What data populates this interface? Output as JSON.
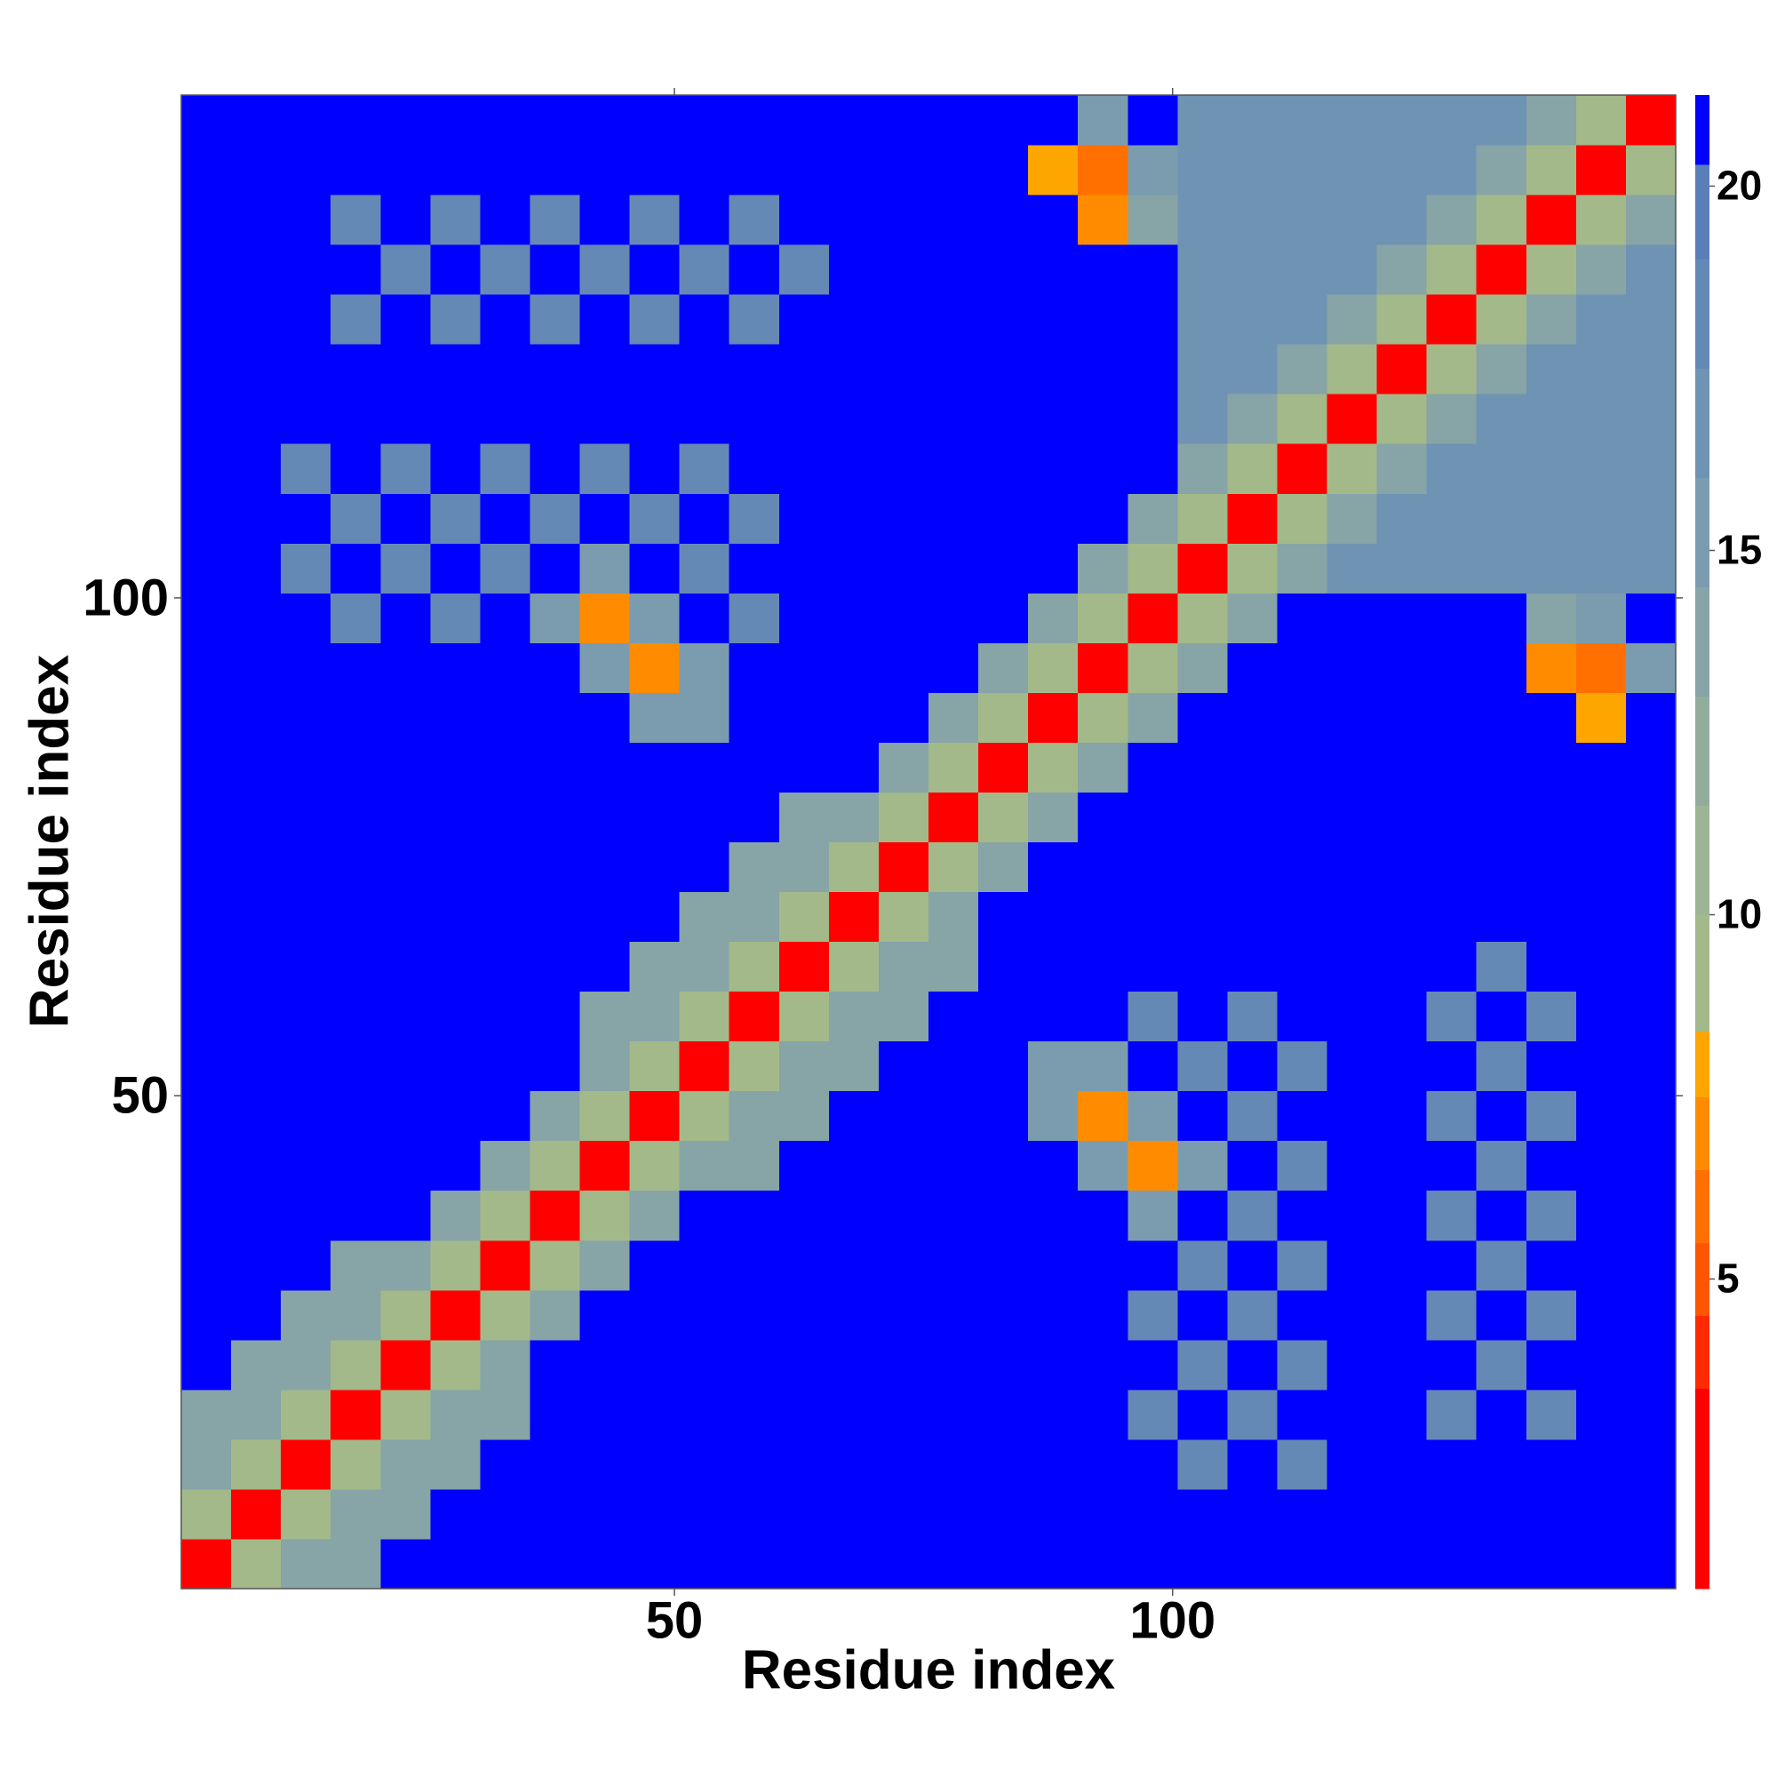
{
  "chart_data": {
    "type": "heatmap",
    "xlabel": "Residue index",
    "ylabel": "Residue index",
    "xlim": [
      0.5,
      150.5
    ],
    "ylim": [
      0.5,
      150.5
    ],
    "xticks": [
      50,
      100
    ],
    "yticks": [
      50,
      100
    ],
    "zlim": [
      0.75,
      21.25
    ],
    "cbar_ticks": [
      5,
      10,
      15,
      20
    ],
    "colorscale": [
      [
        0.75,
        "#ff0000"
      ],
      [
        3.5,
        "#ff2a00"
      ],
      [
        4.5,
        "#ff5500"
      ],
      [
        5.5,
        "#ff7000"
      ],
      [
        6.5,
        "#ff8c00"
      ],
      [
        7.5,
        "#ffa500"
      ],
      [
        8.4,
        "#a3b98a"
      ],
      [
        10,
        "#9db594"
      ],
      [
        11.5,
        "#93ad9c"
      ],
      [
        13,
        "#87a4a6"
      ],
      [
        14.5,
        "#7b9cae"
      ],
      [
        16,
        "#6f93b3"
      ],
      [
        17.5,
        "#6589b5"
      ],
      [
        19,
        "#5a7fb8"
      ],
      [
        20.3,
        "#0000ff"
      ]
    ],
    "z": [
      [
        2.5,
        8.5,
        14,
        14,
        21,
        21,
        21,
        21,
        21,
        21,
        21,
        21,
        21,
        21,
        21,
        21,
        21,
        21,
        21,
        21,
        21,
        21,
        21,
        21,
        21,
        21,
        21,
        21,
        21,
        21
      ],
      [
        8.5,
        2.5,
        8.5,
        14,
        14,
        21,
        21,
        21,
        21,
        21,
        21,
        21,
        21,
        21,
        21,
        21,
        21,
        21,
        21,
        21,
        21,
        21,
        21,
        21,
        21,
        21,
        21,
        21,
        21,
        21
      ],
      [
        14,
        8.5,
        2.5,
        8.5,
        14,
        14,
        21,
        21,
        21,
        21,
        21,
        21,
        21,
        21,
        21,
        21,
        21,
        21,
        21,
        21,
        18,
        21,
        18,
        21,
        21,
        21,
        21,
        21,
        21,
        21
      ],
      [
        14,
        14,
        8.5,
        2.5,
        8.5,
        14,
        14,
        21,
        21,
        21,
        21,
        21,
        21,
        21,
        21,
        21,
        21,
        21,
        21,
        18,
        21,
        18,
        21,
        21,
        21,
        18,
        21,
        18,
        21,
        21
      ],
      [
        21,
        14,
        14,
        8.5,
        2.5,
        8.5,
        14,
        21,
        21,
        21,
        21,
        21,
        21,
        21,
        21,
        21,
        21,
        21,
        21,
        21,
        18,
        21,
        18,
        21,
        21,
        21,
        18,
        21,
        21,
        21
      ],
      [
        21,
        21,
        14,
        14,
        8.5,
        2.5,
        8.5,
        14,
        21,
        21,
        21,
        21,
        21,
        21,
        21,
        21,
        21,
        21,
        21,
        18,
        21,
        18,
        21,
        21,
        21,
        18,
        21,
        18,
        21,
        21
      ],
      [
        21,
        21,
        21,
        14,
        14,
        8.5,
        2.5,
        8.5,
        14,
        21,
        21,
        21,
        21,
        21,
        21,
        21,
        21,
        21,
        21,
        21,
        18,
        21,
        18,
        21,
        21,
        21,
        18,
        21,
        21,
        21
      ],
      [
        21,
        21,
        21,
        21,
        21,
        14,
        8.5,
        2.5,
        8.5,
        14,
        21,
        21,
        21,
        21,
        21,
        21,
        21,
        21,
        21,
        15,
        21,
        18,
        21,
        21,
        21,
        18,
        21,
        18,
        21,
        21
      ],
      [
        21,
        21,
        21,
        21,
        21,
        21,
        14,
        8.5,
        2.5,
        8.5,
        14,
        14,
        21,
        21,
        21,
        21,
        21,
        21,
        15,
        7,
        15,
        21,
        18,
        21,
        21,
        21,
        18,
        21,
        21,
        21
      ],
      [
        21,
        21,
        21,
        21,
        21,
        21,
        21,
        14,
        8.5,
        2.5,
        8.5,
        14,
        14,
        21,
        21,
        21,
        21,
        15,
        7,
        15,
        21,
        18,
        21,
        21,
        21,
        18,
        21,
        18,
        21,
        21
      ],
      [
        21,
        21,
        21,
        21,
        21,
        21,
        21,
        21,
        14,
        8.5,
        2.5,
        8.5,
        14,
        14,
        21,
        21,
        21,
        15,
        15,
        21,
        18,
        21,
        18,
        21,
        21,
        21,
        18,
        21,
        21,
        21
      ],
      [
        21,
        21,
        21,
        21,
        21,
        21,
        21,
        21,
        14,
        14,
        8.5,
        2.5,
        8.5,
        14,
        14,
        21,
        21,
        21,
        21,
        18,
        21,
        18,
        21,
        21,
        21,
        18,
        21,
        18,
        21,
        21
      ],
      [
        21,
        21,
        21,
        21,
        21,
        21,
        21,
        21,
        21,
        14,
        14,
        8.5,
        2.5,
        8.5,
        14,
        14,
        21,
        21,
        21,
        21,
        21,
        21,
        21,
        21,
        21,
        21,
        18,
        21,
        21,
        21
      ],
      [
        21,
        21,
        21,
        21,
        21,
        21,
        21,
        21,
        21,
        21,
        14,
        14,
        8.5,
        2.5,
        8.5,
        14,
        21,
        21,
        21,
        21,
        21,
        21,
        21,
        21,
        21,
        21,
        21,
        21,
        21,
        21
      ],
      [
        21,
        21,
        21,
        21,
        21,
        21,
        21,
        21,
        21,
        21,
        21,
        14,
        14,
        8.5,
        2.5,
        8.5,
        14,
        21,
        21,
        21,
        21,
        21,
        21,
        21,
        21,
        21,
        21,
        21,
        21,
        21
      ],
      [
        21,
        21,
        21,
        21,
        21,
        21,
        21,
        21,
        21,
        21,
        21,
        21,
        14,
        14,
        8.5,
        2.5,
        8.5,
        14,
        21,
        21,
        21,
        21,
        21,
        21,
        21,
        21,
        21,
        21,
        21,
        21
      ],
      [
        21,
        21,
        21,
        21,
        21,
        21,
        21,
        21,
        21,
        21,
        21,
        21,
        21,
        21,
        14,
        8.5,
        2.5,
        8.5,
        14,
        21,
        21,
        21,
        21,
        21,
        21,
        21,
        21,
        21,
        21,
        21
      ],
      [
        21,
        21,
        21,
        21,
        21,
        21,
        21,
        21,
        21,
        15,
        15,
        21,
        21,
        21,
        21,
        14,
        8.5,
        2.5,
        8.5,
        14,
        21,
        21,
        21,
        21,
        21,
        21,
        21,
        21,
        8,
        21
      ],
      [
        21,
        21,
        21,
        21,
        21,
        21,
        21,
        21,
        15,
        7,
        15,
        21,
        21,
        21,
        21,
        21,
        14,
        8.5,
        2.5,
        8.5,
        14,
        21,
        21,
        21,
        21,
        21,
        21,
        7,
        6,
        15
      ],
      [
        21,
        21,
        21,
        18,
        21,
        18,
        21,
        15,
        7,
        15,
        21,
        18,
        21,
        21,
        21,
        21,
        21,
        14,
        8.5,
        2.5,
        8.5,
        14,
        21,
        21,
        21,
        21,
        21,
        14,
        15,
        21
      ],
      [
        21,
        21,
        18,
        21,
        18,
        21,
        18,
        21,
        15,
        21,
        18,
        21,
        21,
        21,
        21,
        21,
        21,
        21,
        14,
        8.5,
        2.5,
        8.5,
        14,
        17,
        17,
        17,
        17,
        17,
        17,
        17
      ],
      [
        21,
        21,
        21,
        18,
        21,
        18,
        21,
        18,
        21,
        18,
        21,
        18,
        21,
        21,
        21,
        21,
        21,
        21,
        21,
        14,
        8.5,
        2.5,
        8.5,
        14,
        17,
        17,
        17,
        17,
        17,
        17
      ],
      [
        21,
        21,
        18,
        21,
        18,
        21,
        18,
        21,
        18,
        21,
        18,
        21,
        21,
        21,
        21,
        21,
        21,
        21,
        21,
        21,
        14,
        8.5,
        2.5,
        8.5,
        14,
        17,
        17,
        17,
        17,
        17
      ],
      [
        21,
        21,
        21,
        21,
        21,
        21,
        21,
        21,
        21,
        21,
        21,
        21,
        21,
        21,
        21,
        21,
        21,
        21,
        21,
        21,
        17,
        14,
        8.5,
        2.5,
        8.5,
        14,
        17,
        17,
        17,
        17
      ],
      [
        21,
        21,
        21,
        21,
        21,
        21,
        21,
        21,
        21,
        21,
        21,
        21,
        21,
        21,
        21,
        21,
        21,
        21,
        21,
        21,
        17,
        17,
        14,
        8.5,
        2.5,
        8.5,
        14,
        17,
        17,
        17
      ],
      [
        21,
        21,
        21,
        18,
        21,
        18,
        21,
        18,
        21,
        18,
        21,
        18,
        21,
        21,
        21,
        21,
        21,
        21,
        21,
        21,
        17,
        17,
        17,
        14,
        8.5,
        2.5,
        8.5,
        14,
        17,
        17
      ],
      [
        21,
        21,
        21,
        21,
        18,
        21,
        18,
        21,
        18,
        21,
        18,
        21,
        18,
        21,
        21,
        21,
        21,
        21,
        21,
        21,
        17,
        17,
        17,
        17,
        14,
        8.5,
        2.5,
        8.5,
        14,
        17
      ],
      [
        21,
        21,
        21,
        18,
        21,
        18,
        21,
        18,
        21,
        18,
        21,
        18,
        21,
        21,
        21,
        21,
        21,
        21,
        7,
        14,
        17,
        17,
        17,
        17,
        17,
        14,
        8.5,
        2.5,
        8.5,
        14
      ],
      [
        21,
        21,
        21,
        21,
        21,
        21,
        21,
        21,
        21,
        21,
        21,
        21,
        21,
        21,
        21,
        21,
        21,
        8,
        6,
        15,
        17,
        17,
        17,
        17,
        17,
        17,
        14,
        8.5,
        2.5,
        8.5
      ],
      [
        21,
        21,
        21,
        21,
        21,
        21,
        21,
        21,
        21,
        21,
        21,
        21,
        21,
        21,
        21,
        21,
        21,
        21,
        15,
        21,
        17,
        17,
        17,
        17,
        17,
        17,
        17,
        14,
        8.5,
        2.5
      ]
    ]
  }
}
